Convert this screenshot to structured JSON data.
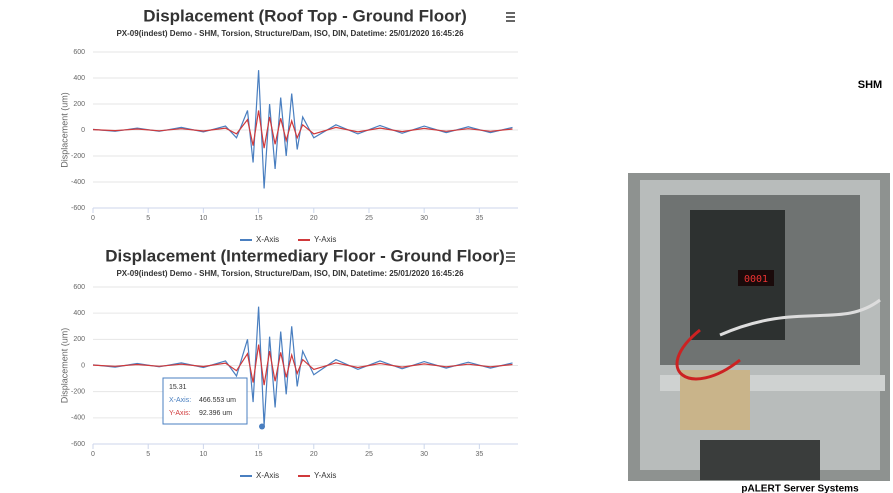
{
  "chart_data": [
    {
      "type": "line",
      "title": "Displacement (Roof Top - Ground Floor)",
      "subtitle": "PX-09(indest) Demo - SHM, Torsion, Structure/Dam, ISO, DIN, Datetime: 25/01/2020 16:45:26",
      "y_label": "Displacement (um)",
      "x": [
        0,
        2,
        4,
        6,
        8,
        10,
        12,
        13,
        14,
        14.5,
        15,
        15.5,
        16,
        16.5,
        17,
        17.5,
        18,
        18.5,
        19,
        20,
        22,
        24,
        26,
        28,
        30,
        32,
        34,
        36,
        38
      ],
      "series": [
        {
          "name": "X-Axis",
          "color": "#4a7fc0",
          "values": [
            5,
            -10,
            15,
            -10,
            20,
            -15,
            30,
            -60,
            150,
            -250,
            460,
            -450,
            200,
            -300,
            250,
            -200,
            280,
            -150,
            100,
            -60,
            40,
            -30,
            35,
            -25,
            30,
            -20,
            25,
            -20,
            20
          ]
        },
        {
          "name": "Y-Axis",
          "color": "#d0393b",
          "values": [
            3,
            -5,
            8,
            -6,
            10,
            -8,
            15,
            -30,
            80,
            -120,
            150,
            -140,
            100,
            -110,
            90,
            -80,
            70,
            -60,
            40,
            -30,
            20,
            -15,
            15,
            -12,
            12,
            -10,
            10,
            -10,
            8
          ]
        }
      ],
      "xlim": [
        0,
        38.5
      ],
      "ylim": [
        -600,
        600
      ],
      "xticks": [
        0,
        5,
        10,
        15,
        20,
        25,
        30,
        35
      ],
      "yticks": [
        600,
        400,
        200,
        0,
        -200,
        -400,
        -600
      ],
      "grid": true,
      "legend": "bottom"
    },
    {
      "type": "line",
      "title": "Displacement (Intermediary Floor - Ground Floor)",
      "subtitle": "PX-09(indest) Demo - SHM, Torsion, Structure/Dam, ISO, DIN, Datetime: 25/01/2020 16:45:26",
      "y_label": "Displacement (um)",
      "x": [
        0,
        2,
        4,
        6,
        8,
        10,
        12,
        13,
        14,
        14.5,
        15,
        15.5,
        16,
        16.5,
        17,
        17.5,
        18,
        18.5,
        19,
        20,
        22,
        24,
        26,
        28,
        30,
        32,
        34,
        36,
        38
      ],
      "series": [
        {
          "name": "X-Axis",
          "color": "#4a7fc0",
          "values": [
            5,
            -12,
            15,
            -10,
            20,
            -15,
            35,
            -80,
            200,
            -280,
            450,
            -460,
            220,
            -320,
            260,
            -220,
            300,
            -160,
            110,
            -70,
            45,
            -30,
            35,
            -25,
            30,
            -20,
            25,
            -20,
            20
          ]
        },
        {
          "name": "Y-Axis",
          "color": "#d0393b",
          "values": [
            3,
            -6,
            8,
            -6,
            10,
            -8,
            18,
            -40,
            90,
            -130,
            160,
            -150,
            110,
            -120,
            100,
            -90,
            80,
            -60,
            45,
            -30,
            20,
            -15,
            15,
            -12,
            12,
            -10,
            10,
            -10,
            8
          ]
        }
      ],
      "xlim": [
        0,
        38.5
      ],
      "ylim": [
        -600,
        600
      ],
      "xticks": [
        0,
        5,
        10,
        15,
        20,
        25,
        30,
        35
      ],
      "yticks": [
        600,
        400,
        200,
        0,
        -200,
        -400,
        -600
      ],
      "grid": true,
      "legend": "bottom",
      "tooltip": {
        "title": "15.31",
        "x": 15.31,
        "y": -466.553,
        "rows": [
          {
            "label": "X-Axis:",
            "value": "466.553 um"
          },
          {
            "label": "Y-Axis:",
            "value": "92.396 um"
          }
        ]
      }
    }
  ],
  "side_label": "SHM",
  "photo_caption": "pALERT Server Systems"
}
